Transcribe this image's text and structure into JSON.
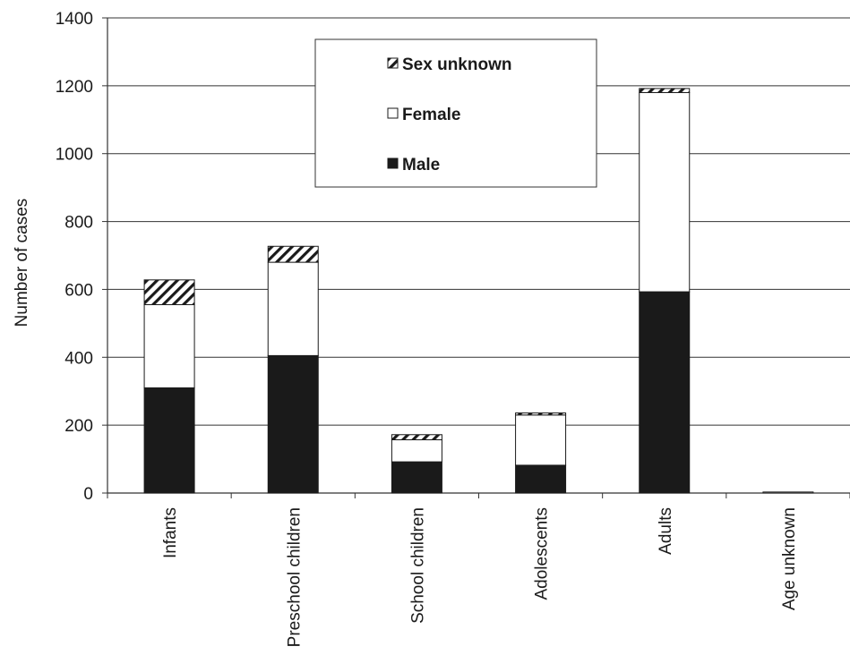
{
  "chart_data": {
    "type": "bar",
    "stacked": true,
    "categories": [
      "Infants",
      "Preschool children",
      "School children",
      "Adolescents",
      "Adults",
      "Age unknown"
    ],
    "series": [
      {
        "name": "Male",
        "values": [
          310,
          405,
          92,
          82,
          593,
          0
        ],
        "color": "#1a1a1a",
        "pattern": "solid"
      },
      {
        "name": "Female",
        "values": [
          245,
          275,
          65,
          148,
          587,
          3
        ],
        "color": "#ffffff",
        "pattern": "white"
      },
      {
        "name": "Sex unknown",
        "values": [
          73,
          47,
          15,
          6,
          12,
          0
        ],
        "color": "#1a1a1a",
        "pattern": "hatched"
      }
    ],
    "title": "",
    "xlabel": "",
    "ylabel": "Number of cases",
    "ylim": [
      0,
      1400
    ],
    "yticks": [
      0,
      200,
      400,
      600,
      800,
      1000,
      1200,
      1400
    ],
    "grid": true,
    "legend_position": "top-center",
    "legend_order": [
      "Sex unknown",
      "Female",
      "Male"
    ]
  }
}
